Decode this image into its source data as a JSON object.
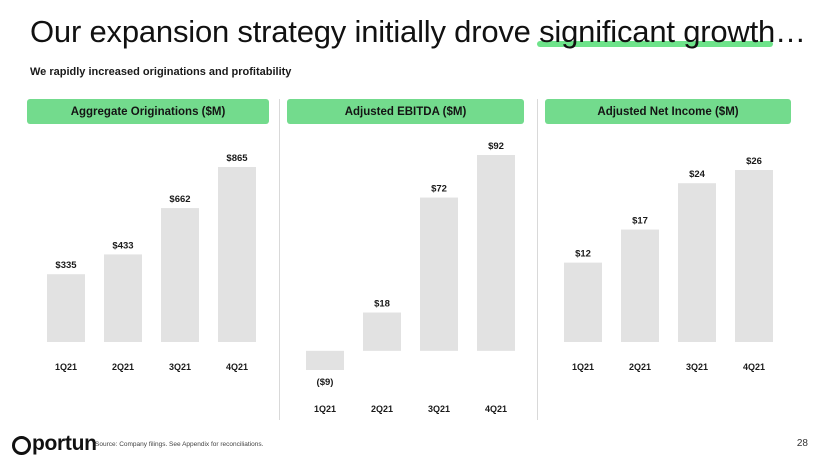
{
  "title": {
    "before": "Our expansion strategy initially drove ",
    "highlight": "significant growth",
    "after": "…"
  },
  "subtitle": "We rapidly increased originations and profitability",
  "chart_data": [
    {
      "type": "bar",
      "title": "Aggregate Originations ($M)",
      "categories": [
        "1Q21",
        "2Q21",
        "3Q21",
        "4Q21"
      ],
      "values": [
        335,
        433,
        662,
        865
      ],
      "labels": [
        "$335",
        "$433",
        "$662",
        "$865"
      ],
      "ylim": [
        0,
        1000
      ],
      "grid": false,
      "bar_color": "#e2e2e2"
    },
    {
      "type": "bar",
      "title": "Adjusted EBITDA ($M)",
      "categories": [
        "1Q21",
        "2Q21",
        "3Q21",
        "4Q21"
      ],
      "values": [
        -9,
        18,
        72,
        92
      ],
      "labels": [
        "($9)",
        "$18",
        "$72",
        "$92"
      ],
      "ylim": [
        -9,
        92
      ],
      "grid": false,
      "bar_color": "#e2e2e2"
    },
    {
      "type": "bar",
      "title": "Adjusted Net Income ($M)",
      "categories": [
        "1Q21",
        "2Q21",
        "3Q21",
        "4Q21"
      ],
      "values": [
        12,
        17,
        24,
        26
      ],
      "labels": [
        "$12",
        "$17",
        "$24",
        "$26"
      ],
      "ylim": [
        0,
        26
      ],
      "grid": false,
      "bar_color": "#e2e2e2"
    }
  ],
  "footer": {
    "logo": "portun",
    "source": "Source: Company filings. See Appendix for reconciliations.",
    "page_number": "28"
  },
  "colors": {
    "accent": "#73db8d",
    "underline": "#6ee38a",
    "bar": "#e2e2e2"
  }
}
